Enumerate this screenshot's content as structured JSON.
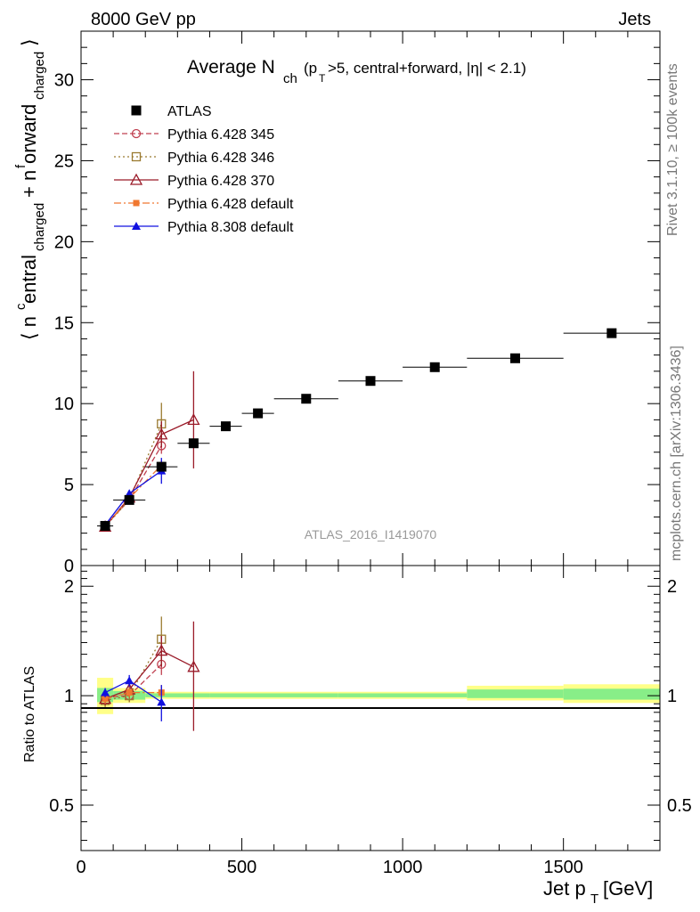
{
  "header": {
    "left": "8000 GeV pp",
    "right": "Jets"
  },
  "side_labels": {
    "rivet": "Rivet 3.1.10, ≥ 100k events",
    "mcplots": "mcplots.cern.ch [arXiv:1306.3436]"
  },
  "chart_data": [
    {
      "type": "scatter",
      "title": "Average N_ch (p_T>5, central+forward, |η| < 2.1)",
      "watermark": "ATLAS_2016_I1419070",
      "ylabel": "⟨ n^central_charged + n^forward_charged ⟩",
      "xlim": [
        0,
        1800
      ],
      "ylim": [
        0,
        33
      ],
      "yticks": [
        0,
        5,
        10,
        15,
        20,
        25,
        30
      ],
      "legend_position": "top-left",
      "series": [
        {
          "name": "ATLAS",
          "color": "#000000",
          "marker": "filled-square",
          "line": "none",
          "x": [
            75,
            150,
            250,
            350,
            450,
            550,
            700,
            900,
            1100,
            1350,
            1650
          ],
          "y": [
            2.45,
            4.05,
            6.1,
            7.55,
            8.6,
            9.4,
            10.3,
            11.4,
            12.25,
            12.8,
            14.35
          ],
          "xerr": [
            25,
            50,
            50,
            50,
            50,
            50,
            100,
            100,
            100,
            150,
            150
          ]
        },
        {
          "name": "Pythia 6.428 345",
          "color": "#c04050",
          "marker": "open-circle",
          "line": "dashed",
          "x": [
            75,
            150,
            250
          ],
          "y": [
            2.45,
            4.05,
            7.4
          ],
          "yerr": [
            0.1,
            0.15,
            0.5
          ]
        },
        {
          "name": "Pythia 6.428 346",
          "color": "#9a7a30",
          "marker": "open-square",
          "line": "dotted",
          "x": [
            75,
            150,
            250
          ],
          "y": [
            2.4,
            4.05,
            8.75
          ],
          "yerr": [
            0.1,
            0.15,
            1.3
          ]
        },
        {
          "name": "Pythia 6.428 370",
          "color": "#9a1a28",
          "marker": "open-triangle",
          "line": "solid",
          "x": [
            75,
            150,
            250,
            350
          ],
          "y": [
            2.4,
            4.2,
            8.1,
            9.0
          ],
          "yerr": [
            0.1,
            0.2,
            0.8,
            3.0
          ]
        },
        {
          "name": "Pythia 6.428 default",
          "color": "#f07830",
          "marker": "filled-square-small",
          "line": "dash-dot",
          "x": [
            75,
            150,
            250
          ],
          "y": [
            2.4,
            4.15,
            6.2
          ],
          "yerr": [
            0.1,
            0.1,
            0.3
          ]
        },
        {
          "name": "Pythia 8.308 default",
          "color": "#1010e0",
          "marker": "filled-triangle",
          "line": "solid",
          "x": [
            75,
            150,
            250
          ],
          "y": [
            2.5,
            4.45,
            5.85
          ],
          "yerr": [
            0.1,
            0.15,
            0.8
          ]
        }
      ]
    },
    {
      "type": "scatter",
      "ylabel": "Ratio to ATLAS",
      "xlabel": "Jet p_T [GeV]",
      "xlim": [
        0,
        1800
      ],
      "xticks": [
        0,
        500,
        1000,
        1500
      ],
      "ylim": [
        0.375,
        2.28
      ],
      "ylog": true,
      "yticks": [
        0.5,
        1,
        2
      ],
      "bands": [
        {
          "x0": 50,
          "x1": 100,
          "stat_lo": 0.96,
          "stat_hi": 1.05,
          "tot_lo": 0.89,
          "tot_hi": 1.12
        },
        {
          "x0": 100,
          "x1": 200,
          "stat_lo": 0.975,
          "stat_hi": 1.03,
          "tot_lo": 0.955,
          "tot_hi": 1.05
        },
        {
          "x0": 200,
          "x1": 400,
          "stat_lo": 0.99,
          "stat_hi": 1.015,
          "tot_lo": 0.98,
          "tot_hi": 1.025
        },
        {
          "x0": 400,
          "x1": 800,
          "stat_lo": 0.99,
          "stat_hi": 1.015,
          "tot_lo": 0.98,
          "tot_hi": 1.025
        },
        {
          "x0": 800,
          "x1": 1200,
          "stat_lo": 0.99,
          "stat_hi": 1.015,
          "tot_lo": 0.98,
          "tot_hi": 1.025
        },
        {
          "x0": 1200,
          "x1": 1500,
          "stat_lo": 0.985,
          "stat_hi": 1.04,
          "tot_lo": 0.97,
          "tot_hi": 1.065
        },
        {
          "x0": 1500,
          "x1": 1800,
          "stat_lo": 0.975,
          "stat_hi": 1.045,
          "tot_lo": 0.955,
          "tot_hi": 1.075
        }
      ],
      "series": [
        {
          "name": "Pythia 6.428 345",
          "color": "#c04050",
          "marker": "open-circle",
          "line": "dashed",
          "x": [
            75,
            150,
            250
          ],
          "y": [
            0.99,
            1.0,
            1.22
          ],
          "yerr": [
            0.04,
            0.04,
            0.08
          ]
        },
        {
          "name": "Pythia 6.428 346",
          "color": "#9a7a30",
          "marker": "open-square",
          "line": "dotted",
          "x": [
            75,
            150,
            250
          ],
          "y": [
            0.97,
            1.0,
            1.43
          ],
          "yerr": [
            0.04,
            0.04,
            0.22
          ]
        },
        {
          "name": "Pythia 6.428 370",
          "color": "#9a1a28",
          "marker": "open-triangle",
          "line": "solid",
          "x": [
            75,
            150,
            250,
            350
          ],
          "y": [
            0.98,
            1.04,
            1.33,
            1.2
          ],
          "yerr": [
            0.04,
            0.05,
            0.13,
            0.4
          ]
        },
        {
          "name": "Pythia 6.428 default",
          "color": "#f07830",
          "marker": "filled-square-small",
          "line": "dash-dot",
          "x": [
            75,
            150,
            250
          ],
          "y": [
            0.98,
            1.02,
            1.02
          ],
          "yerr": [
            0.03,
            0.03,
            0.05
          ]
        },
        {
          "name": "Pythia 8.308 default",
          "color": "#1010e0",
          "marker": "filled-triangle",
          "line": "solid",
          "x": [
            75,
            150,
            250
          ],
          "y": [
            1.02,
            1.1,
            0.96
          ],
          "yerr": [
            0.03,
            0.04,
            0.11
          ]
        }
      ]
    }
  ]
}
